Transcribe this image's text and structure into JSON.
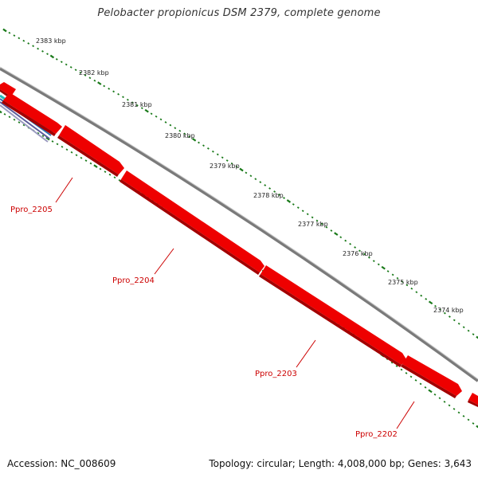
{
  "title": "Pelobacter propionicus DSM 2379, complete genome",
  "footer": {
    "accession": "Accession: NC_008609",
    "summary": "Topology: circular; Length: 4,008,000 bp; Genes: 3,643"
  },
  "ticks": [
    "2383 kbp",
    "2382 kbp",
    "2381 kbp",
    "2380 kbp",
    "2379 kbp",
    "2378 kbp",
    "2377 kbp",
    "2376 kbp",
    "2375 kbp",
    "2374 kbp"
  ],
  "genes": [
    {
      "label": "Ppro_2205"
    },
    {
      "label": "Ppro_2204"
    },
    {
      "label": "Ppro_2203"
    },
    {
      "label": "Ppro_2202"
    }
  ],
  "colors": {
    "gene": "#ee0000",
    "gene_dark": "#b30000",
    "backbone": "#808080",
    "tick": "#1a7a1a",
    "label": "#cc0000"
  }
}
